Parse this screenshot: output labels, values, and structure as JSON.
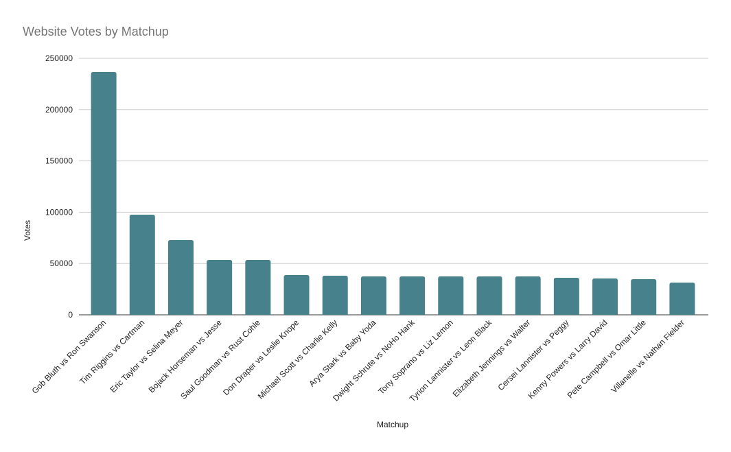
{
  "chart_data": {
    "type": "bar",
    "title": "Website Votes by Matchup",
    "xlabel": "Matchup",
    "ylabel": "Votes",
    "ylim": [
      0,
      250000
    ],
    "yticks": [
      "0",
      "50000",
      "100000",
      "150000",
      "200000",
      "250000"
    ],
    "grid": true,
    "legend": "none",
    "bar_color": "#46818c",
    "categories": [
      "Gob Bluth vs Ron Swanson",
      "Tim Riggins vs Cartman",
      "Eric Taylor vs Selina Meyer",
      "Bojack Horseman vs Jesse",
      "Saul Goodman vs Rust Cohle",
      "Don Draper vs Leslie Knope",
      "Michael Scott vs Charlie Kelly",
      "Arya Stark vs Baby Yoda",
      "Dwight Schrute vs NoHo Hank",
      "Tony Soprano vs Liz Lemon",
      "Tyrion Lannister vs Leon Black",
      "Elizabeth Jennings vs Walter",
      "Cersei Lannister vs Peggy",
      "Kenny Powers vs Larry David",
      "Pete Campbell vs Omar Little",
      "Villanelle vs Nathan Fielder"
    ],
    "values": [
      236600,
      97600,
      72900,
      53500,
      53500,
      38800,
      38100,
      37400,
      37400,
      37400,
      37400,
      37400,
      36100,
      35400,
      34800,
      31400
    ]
  }
}
